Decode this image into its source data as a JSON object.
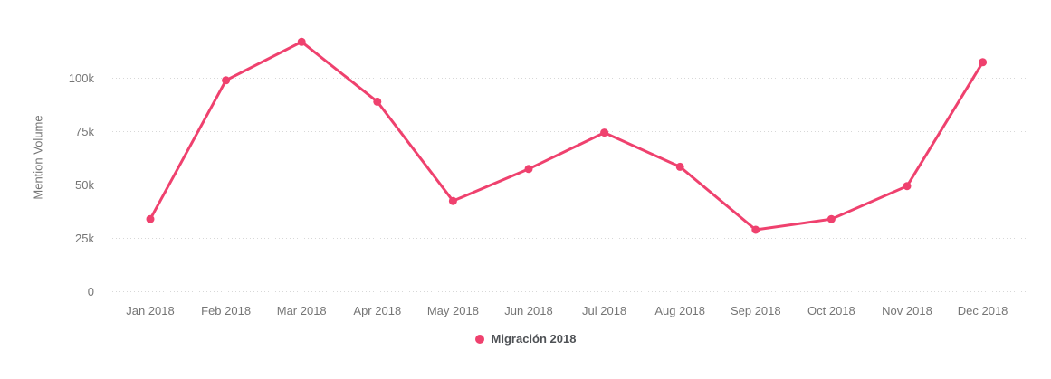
{
  "chart_data": {
    "type": "line",
    "title": "",
    "ylabel": "Mention Volume",
    "xlabel": "",
    "categories": [
      "Jan 2018",
      "Feb 2018",
      "Mar 2018",
      "Apr 2018",
      "May 2018",
      "Jun 2018",
      "Jul 2018",
      "Aug 2018",
      "Sep 2018",
      "Oct 2018",
      "Nov 2018",
      "Dec 2018"
    ],
    "series": [
      {
        "name": "Migración 2018",
        "color": "#EF416E",
        "values": [
          34000,
          99000,
          117000,
          89000,
          42500,
          57500,
          74500,
          58500,
          29000,
          34000,
          49500,
          107500
        ]
      }
    ],
    "yticks": [
      {
        "value": 0,
        "label": "0"
      },
      {
        "value": 25000,
        "label": "25k"
      },
      {
        "value": 50000,
        "label": "50k"
      },
      {
        "value": 75000,
        "label": "75k"
      },
      {
        "value": 100000,
        "label": "100k"
      }
    ],
    "ylim": [
      0,
      129000
    ],
    "grid": "horizontal-dotted",
    "legend_position": "bottom",
    "colors": {
      "line": "#EF416E",
      "grid": "#D8D8D8",
      "tick_text": "#757575",
      "axis_title_text": "#757575",
      "legend_text": "#4F5256",
      "background": "#FFFFFF"
    }
  }
}
